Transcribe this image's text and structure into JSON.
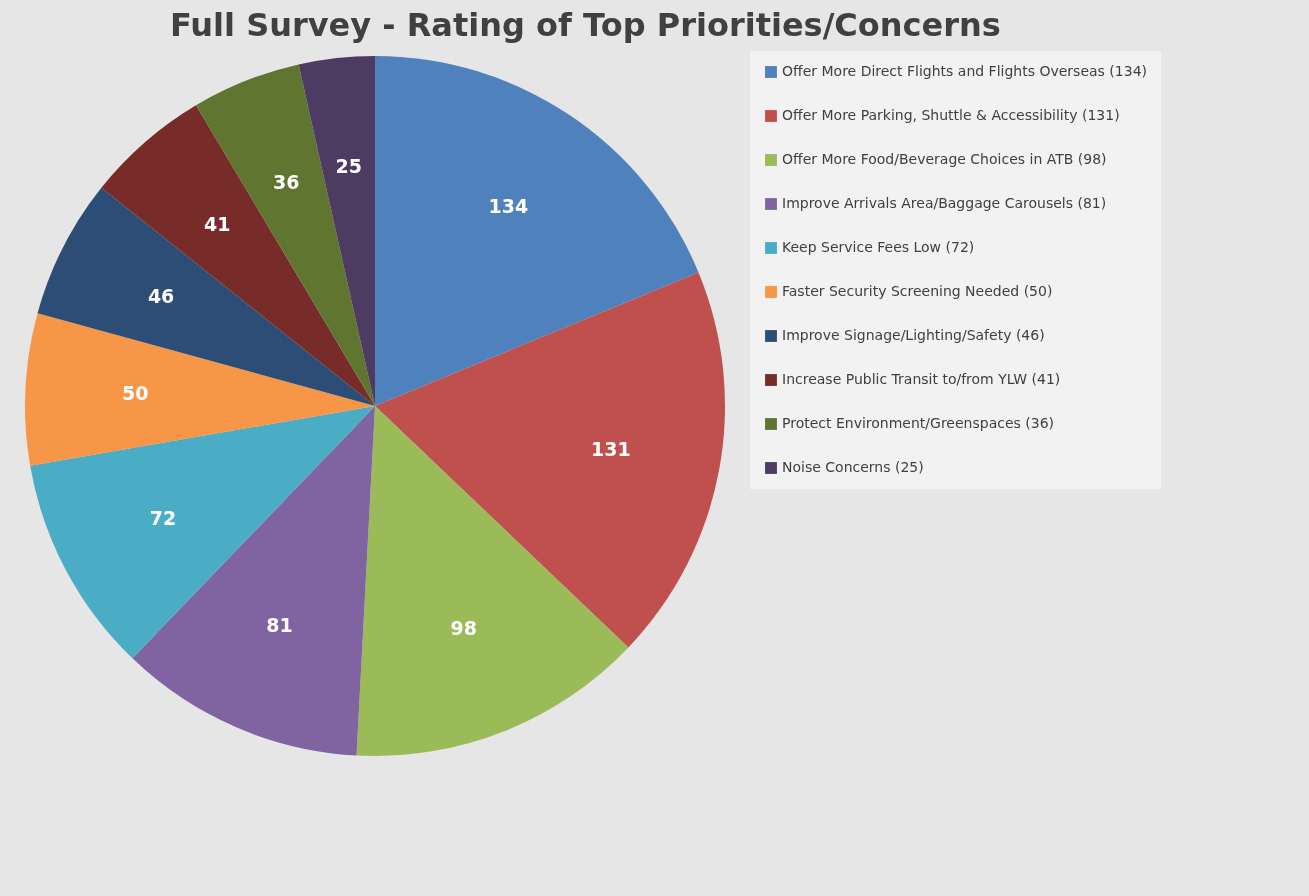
{
  "chart_data": {
    "type": "pie",
    "title": "Full Survey - Rating of Top Priorities/Concerns",
    "categories": [
      "Offer More Direct Flights and Flights Overseas (134)",
      "Offer More Parking, Shuttle & Accessibility (131)",
      "Offer More Food/Beverage Choices in ATB (98)",
      "Improve Arrivals Area/Baggage Carousels (81)",
      "Keep Service Fees Low (72)",
      "Faster Security Screening Needed (50)",
      "Improve Signage/Lighting/Safety (46)",
      "Increase Public Transit to/from YLW (41)",
      "Protect Environment/Greenspaces (36)",
      "Noise Concerns (25)"
    ],
    "values": [
      134,
      131,
      98,
      81,
      72,
      50,
      46,
      41,
      36,
      25
    ],
    "colors": [
      "#4f81bd",
      "#c0504d",
      "#9bbb59",
      "#8064a2",
      "#4bacc6",
      "#f79646",
      "#2c4d75",
      "#772c2a",
      "#5f7530",
      "#4d3b62"
    ],
    "data_labels": true,
    "legend": "right"
  }
}
